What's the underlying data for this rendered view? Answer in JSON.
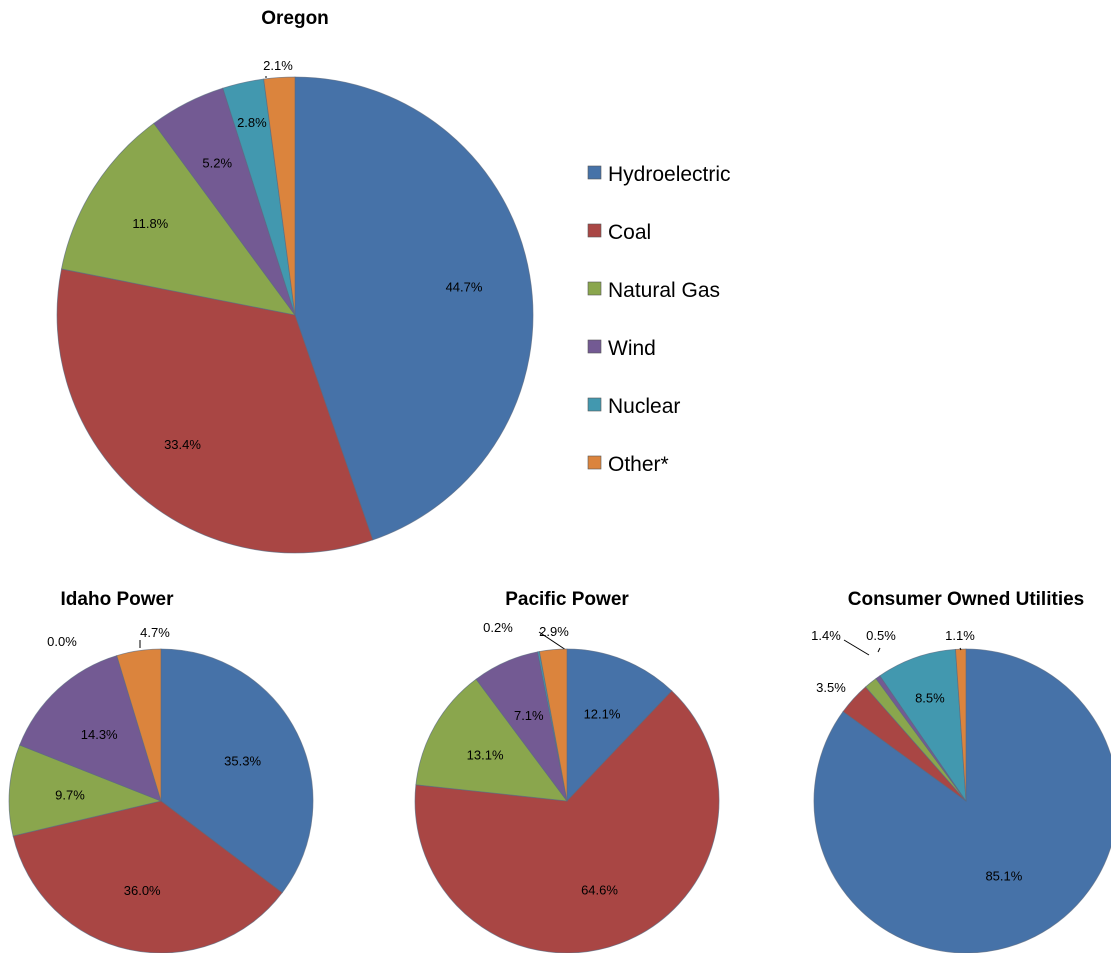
{
  "colors": {
    "Hydroelectric": "#4672A8",
    "Coal": "#A94644",
    "Natural Gas": "#8AA64D",
    "Wind": "#735A93",
    "Nuclear": "#4298AF",
    "Other*": "#DB843D"
  },
  "legend": [
    "Hydroelectric",
    "Coal",
    "Natural Gas",
    "Wind",
    "Nuclear",
    "Other*"
  ],
  "chart_data": [
    {
      "type": "pie",
      "title": "Oregon",
      "categories": [
        "Hydroelectric",
        "Coal",
        "Natural Gas",
        "Wind",
        "Nuclear",
        "Other*"
      ],
      "values": [
        44.7,
        33.4,
        11.8,
        5.2,
        2.8,
        2.1
      ],
      "labels": [
        "44.7%",
        "33.4%",
        "11.8%",
        "5.2%",
        "2.8%",
        "2.1%"
      ]
    },
    {
      "type": "pie",
      "title": "Idaho Power",
      "categories": [
        "Hydroelectric",
        "Coal",
        "Natural Gas",
        "Wind",
        "Nuclear",
        "Other*"
      ],
      "values": [
        35.3,
        36.0,
        9.7,
        14.3,
        0.0,
        4.7
      ],
      "labels": [
        "35.3%",
        "36.0%",
        "9.7%",
        "14.3%",
        "0.0%",
        "4.7%"
      ]
    },
    {
      "type": "pie",
      "title": "Pacific Power",
      "categories": [
        "Hydroelectric",
        "Coal",
        "Natural Gas",
        "Wind",
        "Nuclear",
        "Other*"
      ],
      "values": [
        12.1,
        64.6,
        13.1,
        7.1,
        0.2,
        2.9
      ],
      "labels": [
        "12.1%",
        "64.6%",
        "13.1%",
        "7.1%",
        "0.2%",
        "2.9%"
      ]
    },
    {
      "type": "pie",
      "title": "Consumer Owned Utilities",
      "categories": [
        "Hydroelectric",
        "Coal",
        "Natural Gas",
        "Wind",
        "Nuclear",
        "Other*"
      ],
      "values": [
        85.1,
        3.5,
        1.4,
        0.5,
        8.5,
        1.1
      ],
      "labels": [
        "85.1%",
        "3.5%",
        "1.4%",
        "0.5%",
        "8.5%",
        "1.1%"
      ]
    }
  ]
}
